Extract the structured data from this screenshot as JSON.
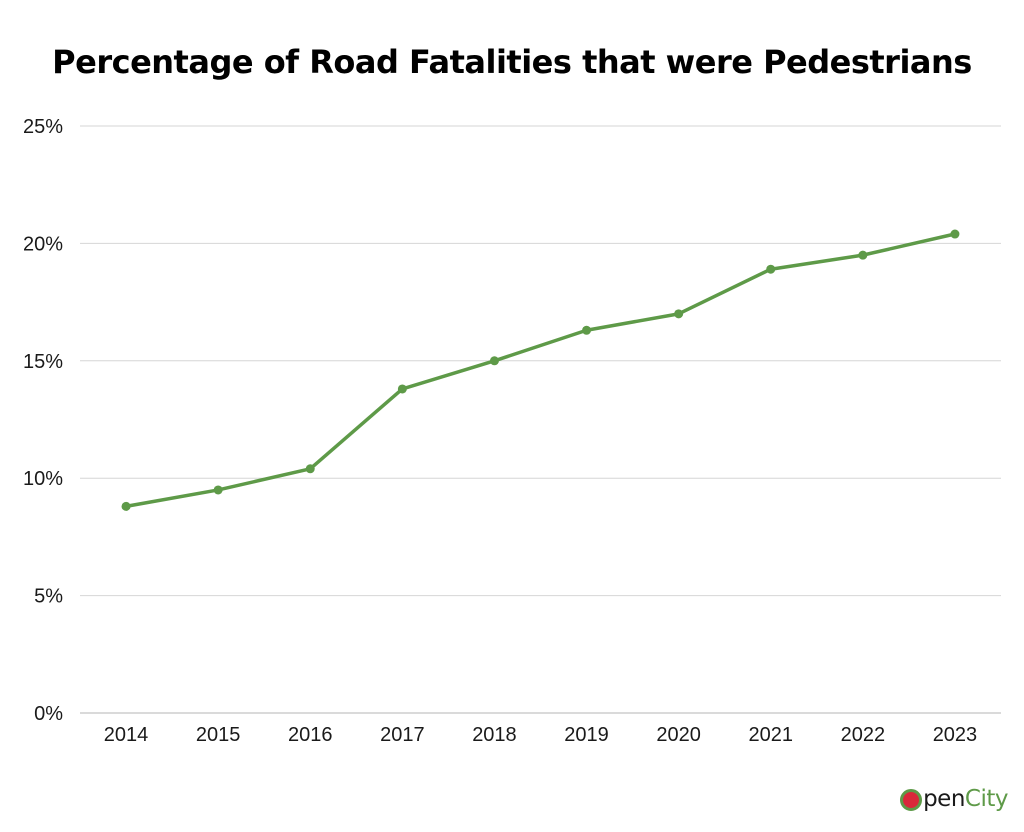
{
  "chart_data": {
    "type": "line",
    "title": "Percentage of Road Fatalities that were Pedestrians",
    "xlabel": "",
    "ylabel": "",
    "categories": [
      "2014",
      "2015",
      "2016",
      "2017",
      "2018",
      "2019",
      "2020",
      "2021",
      "2022",
      "2023"
    ],
    "series": [
      {
        "values": [
          8.8,
          9.5,
          10.4,
          13.8,
          15.0,
          16.3,
          17.0,
          18.9,
          19.5,
          20.4
        ],
        "color": "#5e9a48"
      }
    ],
    "ylim": [
      0,
      25
    ],
    "yticks": [
      0,
      5,
      10,
      15,
      20,
      25
    ],
    "ytick_labels": [
      "0%",
      "5%",
      "10%",
      "15%",
      "20%",
      "25%"
    ],
    "grid": true,
    "legend": "none"
  },
  "branding": {
    "logo_text_open": "pen",
    "logo_text_city": "City",
    "logo_prefix_icon": "opencity-o-icon",
    "accent_color": "#5e9a48",
    "dot_color": "#d9283a"
  }
}
